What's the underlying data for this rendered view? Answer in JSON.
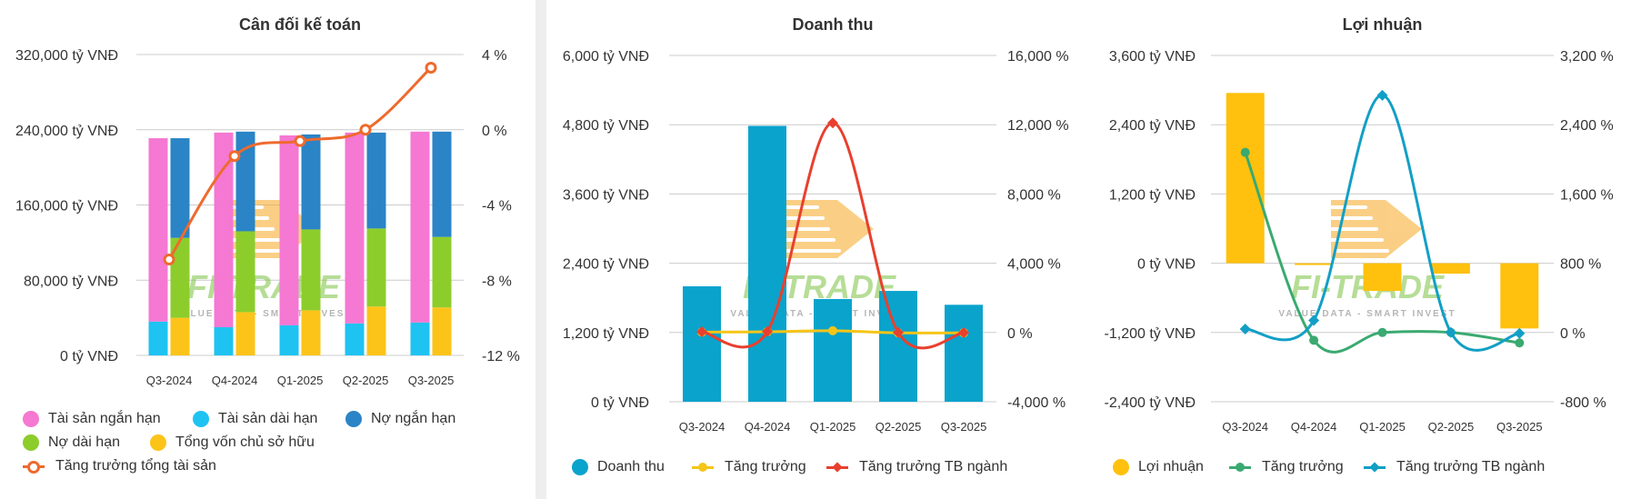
{
  "colors": {
    "short_assets": "#f578d2",
    "long_assets": "#1ec3f2",
    "short_debt": "#2a84c6",
    "long_debt": "#8ccd2c",
    "equity": "#fcc419",
    "asset_growth": "#ee6a2d",
    "revenue": "#0aa3cc",
    "growth": "#f5c518",
    "industry_growth": "#e8402e",
    "profit": "#ffc10e",
    "profit_growth": "#3aaa70",
    "profit_industry": "#129fc6",
    "grid": "#cccccc"
  },
  "watermark": {
    "brand": "FI-TRADE",
    "tagline": "VALUE DATA - SMART INVEST"
  },
  "chart_data": [
    {
      "type": "bar",
      "stacked": true,
      "title": "Cân đối kế toán",
      "categories": [
        "Q3-2024",
        "Q4-2024",
        "Q1-2025",
        "Q2-2025",
        "Q3-2025"
      ],
      "left_ticks": [
        "0 tỷ VNĐ",
        "80,000 tỷ VNĐ",
        "160,000 tỷ VNĐ",
        "240,000 tỷ VNĐ",
        "320,000 tỷ VNĐ"
      ],
      "right_ticks": [
        "-12 %",
        "-8 %",
        "-4 %",
        "0 %",
        "4 %"
      ],
      "ylim": [
        0,
        320000
      ],
      "y2lim": [
        -12,
        4
      ],
      "assets_stack": [
        {
          "name": "Tài sản dài hạn",
          "color_key": "long_assets",
          "values": [
            36000,
            30000,
            32000,
            34000,
            35000
          ]
        },
        {
          "name": "Tài sản ngắn hạn",
          "color_key": "short_assets",
          "values": [
            195000,
            207000,
            202000,
            203000,
            203000
          ]
        }
      ],
      "capital_stack": [
        {
          "name": "Tổng vốn chủ sở hữu",
          "color_key": "equity",
          "values": [
            40000,
            46000,
            48000,
            52000,
            51000
          ]
        },
        {
          "name": "Nợ dài hạn",
          "color_key": "long_debt",
          "values": [
            85000,
            86000,
            86000,
            83000,
            75000
          ]
        },
        {
          "name": "Nợ ngắn hạn",
          "color_key": "short_debt",
          "values": [
            106000,
            106000,
            101000,
            102000,
            112000
          ]
        }
      ],
      "line": {
        "name": "Tăng trưởng tổng tài sản",
        "color_key": "asset_growth",
        "values": [
          -6.9,
          -1.4,
          -0.6,
          0,
          3.3
        ]
      },
      "legend": [
        {
          "label": "Tài sản ngắn hạn",
          "color_key": "short_assets",
          "kind": "dot"
        },
        {
          "label": "Tài sản dài hạn",
          "color_key": "long_assets",
          "kind": "dot"
        },
        {
          "label": "Nợ ngắn hạn",
          "color_key": "short_debt",
          "kind": "dot"
        },
        {
          "label": "Nợ dài hạn",
          "color_key": "long_debt",
          "kind": "dot"
        },
        {
          "label": "Tổng vốn chủ sở hữu",
          "color_key": "equity",
          "kind": "dot"
        },
        {
          "label": "Tăng trưởng tổng tài sản",
          "color_key": "asset_growth",
          "kind": "line-hollow"
        }
      ]
    },
    {
      "type": "bar",
      "title": "Doanh thu",
      "categories": [
        "Q3-2024",
        "Q4-2024",
        "Q1-2025",
        "Q2-2025",
        "Q3-2025"
      ],
      "left_ticks": [
        "0 tỷ VNĐ",
        "1,200 tỷ VNĐ",
        "2,400 tỷ VNĐ",
        "3,600 tỷ VNĐ",
        "4,800 tỷ VNĐ",
        "6,000 tỷ VNĐ"
      ],
      "right_ticks": [
        "-4,000 %",
        "0 %",
        "4,000 %",
        "8,000 %",
        "12,000 %",
        "16,000 %"
      ],
      "ylim": [
        0,
        6000
      ],
      "y2lim": [
        -4000,
        16000
      ],
      "bars": {
        "name": "Doanh thu",
        "color_key": "revenue",
        "values": [
          2000,
          4780,
          1780,
          1920,
          1680
        ]
      },
      "lines": [
        {
          "name": "Tăng trưởng",
          "color_key": "growth",
          "values": [
            20,
            40,
            100,
            -20,
            -20
          ],
          "marker": "dot"
        },
        {
          "name": "Tăng trưởng TB ngành",
          "color_key": "industry_growth",
          "values": [
            40,
            50,
            12100,
            0,
            -10
          ],
          "marker": "diamond"
        }
      ],
      "legend": [
        {
          "label": "Doanh thu",
          "color_key": "revenue",
          "kind": "dot"
        },
        {
          "label": "Tăng trưởng",
          "color_key": "growth",
          "kind": "line-dot"
        },
        {
          "label": "Tăng trưởng TB ngành",
          "color_key": "industry_growth",
          "kind": "line-diamond"
        }
      ]
    },
    {
      "type": "bar",
      "title": "Lợi nhuận",
      "categories": [
        "Q3-2024",
        "Q4-2024",
        "Q1-2025",
        "Q2-2025",
        "Q3-2025"
      ],
      "left_ticks": [
        "-2,400 tỷ VNĐ",
        "-1,200 tỷ VNĐ",
        "0 tỷ VNĐ",
        "1,200 tỷ VNĐ",
        "2,400 tỷ VNĐ",
        "3,600 tỷ VNĐ"
      ],
      "right_ticks": [
        "-800 %",
        "0 %",
        "800 %",
        "1,600 %",
        "2,400 %",
        "3,200 %"
      ],
      "ylim": [
        -2400,
        3600
      ],
      "y2lim": [
        -800,
        3200
      ],
      "bars": {
        "name": "Lợi nhuận",
        "color_key": "profit",
        "values": [
          2950,
          0,
          -480,
          -180,
          -1130
        ]
      },
      "lines": [
        {
          "name": "Tăng trưởng",
          "color_key": "profit_growth",
          "values": [
            2080,
            -90,
            0,
            0,
            -120
          ],
          "marker": "dot"
        },
        {
          "name": "Tăng trưởng TB ngành",
          "color_key": "profit_industry",
          "values": [
            40,
            140,
            2740,
            0,
            -10
          ],
          "marker": "diamond"
        }
      ],
      "legend": [
        {
          "label": "Lợi nhuận",
          "color_key": "profit",
          "kind": "dot"
        },
        {
          "label": "Tăng trưởng",
          "color_key": "profit_growth",
          "kind": "line-dot"
        },
        {
          "label": "Tăng trưởng TB ngành",
          "color_key": "profit_industry",
          "kind": "line-diamond"
        }
      ]
    }
  ]
}
